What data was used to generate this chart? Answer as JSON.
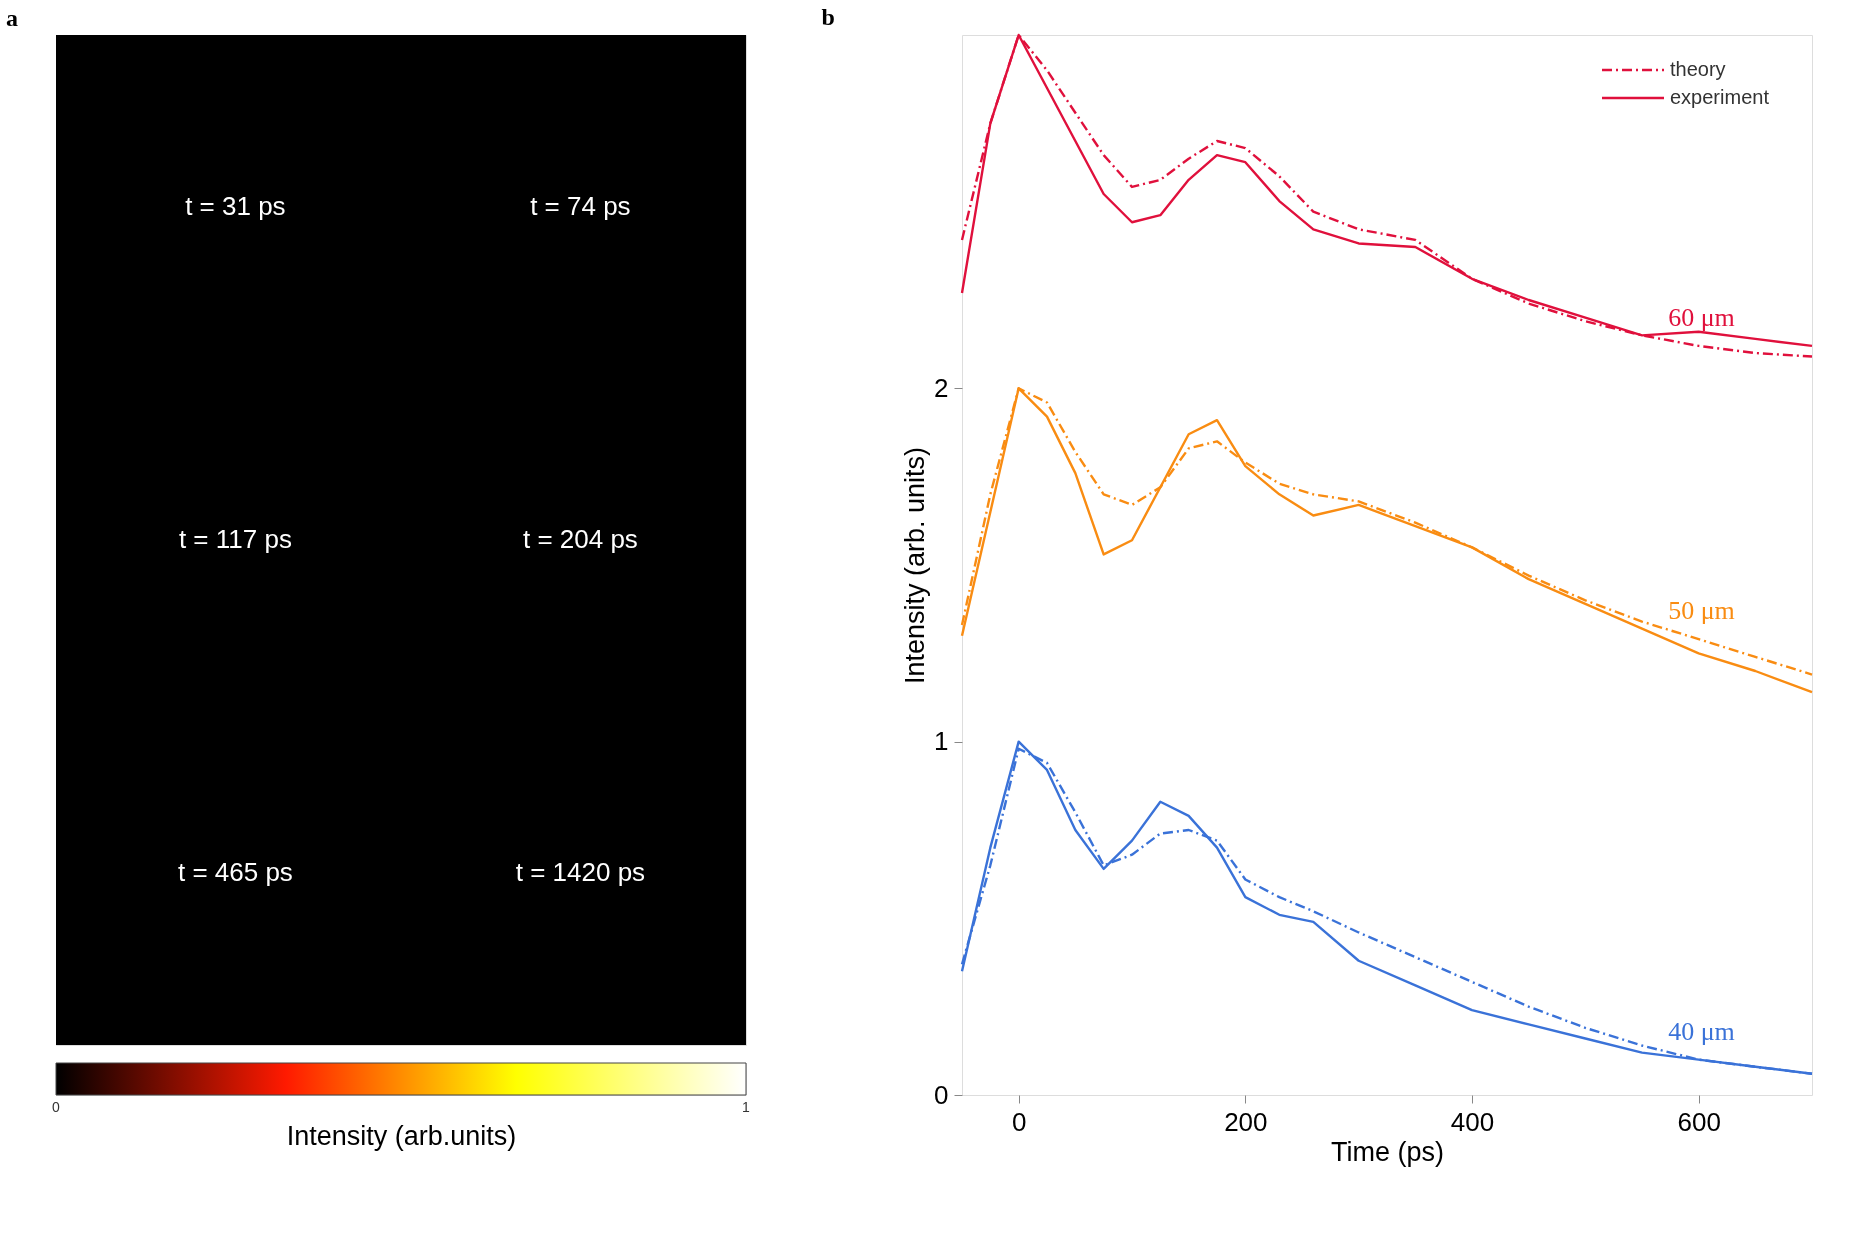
{
  "chart_data": [
    {
      "type": "other",
      "title": "a",
      "annotations": [
        "t = 31 ps",
        "t = 74 ps",
        "t = 117 ps",
        "t = 204 ps",
        "t = 465 ps",
        "t = 1420 ps",
        "0",
        "1"
      ],
      "xlabel": "Intensity (arb.units)",
      "colors": [
        "#000000",
        "#ff1a00",
        "#ffff00",
        "#ffffff"
      ]
    },
    {
      "type": "line",
      "title": "b",
      "xlabel": "Time (ps)",
      "ylabel": "Intensity (arb. units)",
      "x": [
        -50,
        -25,
        0,
        25,
        50,
        75,
        100,
        125,
        150,
        175,
        200,
        230,
        260,
        300,
        350,
        400,
        450,
        500,
        550,
        600,
        650,
        700
      ],
      "series": [
        {
          "name": "theory",
          "color": "#e0103c",
          "line_style": "dashed",
          "values": [
            2.42,
            2.75,
            3.0,
            2.9,
            2.78,
            2.66,
            2.57,
            2.59,
            2.65,
            2.7,
            2.68,
            2.6,
            2.5,
            2.45,
            2.42,
            2.31,
            2.24,
            2.19,
            2.15,
            2.12,
            2.1,
            2.09
          ]
        },
        {
          "name": "experiment",
          "color": "#e0103c",
          "line_style": "solid",
          "values": [
            2.27,
            2.75,
            3.0,
            2.85,
            2.7,
            2.55,
            2.47,
            2.49,
            2.59,
            2.66,
            2.64,
            2.53,
            2.45,
            2.41,
            2.4,
            2.31,
            2.25,
            2.2,
            2.15,
            2.16,
            2.14,
            2.12
          ]
        },
        {
          "color": "#f98c12",
          "line_style": "dashed",
          "values": [
            1.33,
            1.7,
            2.0,
            1.96,
            1.82,
            1.7,
            1.67,
            1.72,
            1.83,
            1.85,
            1.79,
            1.73,
            1.7,
            1.68,
            1.62,
            1.55,
            1.47,
            1.4,
            1.34,
            1.29,
            1.24,
            1.19
          ]
        },
        {
          "color": "#f98c12",
          "line_style": "solid",
          "values": [
            1.3,
            1.65,
            2.0,
            1.92,
            1.76,
            1.53,
            1.57,
            1.72,
            1.87,
            1.91,
            1.78,
            1.7,
            1.64,
            1.67,
            1.61,
            1.55,
            1.46,
            1.39,
            1.32,
            1.25,
            1.2,
            1.14
          ]
        },
        {
          "color": "#3a72d8",
          "line_style": "dashed",
          "values": [
            0.37,
            0.65,
            0.98,
            0.94,
            0.8,
            0.65,
            0.68,
            0.74,
            0.75,
            0.72,
            0.61,
            0.56,
            0.52,
            0.46,
            0.39,
            0.32,
            0.25,
            0.19,
            0.14,
            0.1,
            0.08,
            0.06
          ]
        },
        {
          "color": "#3a72d8",
          "line_style": "solid",
          "values": [
            0.35,
            0.7,
            1.0,
            0.92,
            0.75,
            0.64,
            0.72,
            0.83,
            0.79,
            0.7,
            0.56,
            0.51,
            0.49,
            0.38,
            0.31,
            0.24,
            0.2,
            0.16,
            0.12,
            0.1,
            0.08,
            0.06
          ]
        }
      ],
      "xlim": [
        -50,
        700
      ],
      "xticks": [
        0,
        200,
        400,
        600
      ],
      "ylim": [
        0,
        3
      ],
      "yticks": [
        0,
        1,
        2
      ],
      "grid": false,
      "legend": "top right",
      "annotations": [
        "60 μm",
        "50 μm",
        "40 μm"
      ]
    }
  ]
}
